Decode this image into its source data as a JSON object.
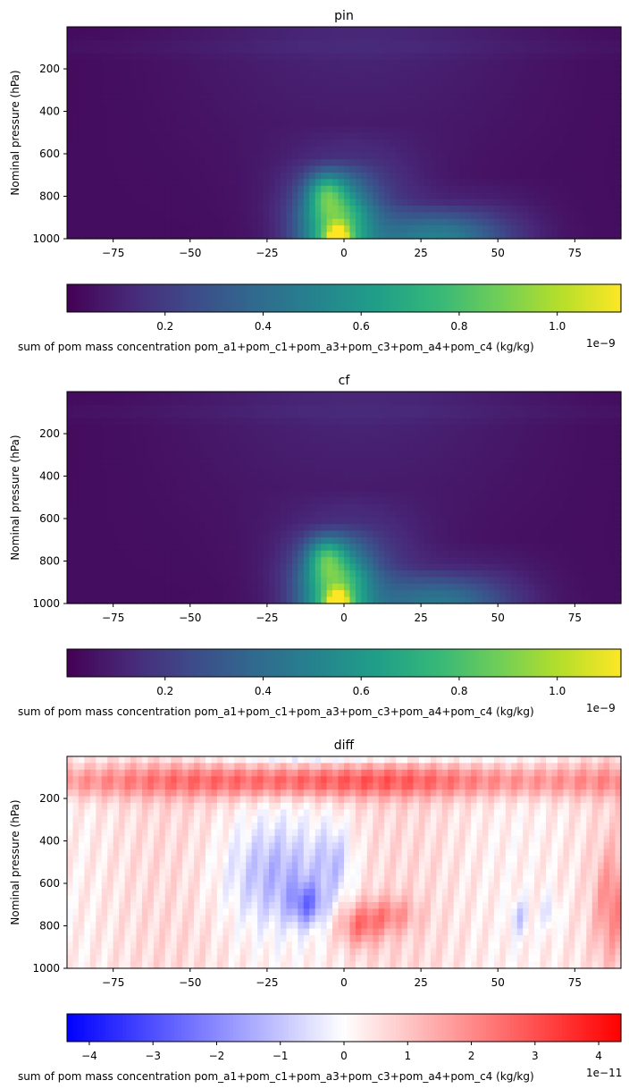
{
  "chart_data": [
    {
      "type": "heatmap",
      "title": "pin",
      "xlabel": "",
      "ylabel": "Nominal pressure (hPa)",
      "xlim": [
        -90,
        90
      ],
      "ylim": [
        1000,
        2
      ],
      "x_ticks": [
        -75,
        -50,
        -25,
        0,
        25,
        50,
        75
      ],
      "x_tick_labels": [
        "−75",
        "−50",
        "−25",
        "0",
        "25",
        "50",
        "75"
      ],
      "y_ticks": [
        200,
        400,
        600,
        800,
        1000
      ],
      "y_tick_labels": [
        "200",
        "400",
        "600",
        "800",
        "1000"
      ],
      "colormap": "viridis",
      "colorbar": {
        "range": [
          0,
          1.13
        ],
        "ticks": [
          0.2,
          0.4,
          0.6,
          0.8,
          1.0
        ],
        "tick_labels": [
          "0.2",
          "0.4",
          "0.6",
          "0.8",
          "1.0"
        ],
        "offset_label": "1e−9",
        "label": "sum of pom mass concentration pom_a1+pom_c1+pom_a3+pom_c3+pom_a4+pom_c4 (kg/kg)"
      }
    },
    {
      "type": "heatmap",
      "title": "cf",
      "xlabel": "",
      "ylabel": "Nominal pressure (hPa)",
      "xlim": [
        -90,
        90
      ],
      "ylim": [
        1000,
        2
      ],
      "x_ticks": [
        -75,
        -50,
        -25,
        0,
        25,
        50,
        75
      ],
      "x_tick_labels": [
        "−75",
        "−50",
        "−25",
        "0",
        "25",
        "50",
        "75"
      ],
      "y_ticks": [
        200,
        400,
        600,
        800,
        1000
      ],
      "y_tick_labels": [
        "200",
        "400",
        "600",
        "800",
        "1000"
      ],
      "colormap": "viridis",
      "colorbar": {
        "range": [
          0,
          1.13
        ],
        "ticks": [
          0.2,
          0.4,
          0.6,
          0.8,
          1.0
        ],
        "tick_labels": [
          "0.2",
          "0.4",
          "0.6",
          "0.8",
          "1.0"
        ],
        "offset_label": "1e−9",
        "label": "sum of pom mass concentration pom_a1+pom_c1+pom_a3+pom_c3+pom_a4+pom_c4 (kg/kg)"
      }
    },
    {
      "type": "heatmap",
      "title": "diff",
      "xlabel": "",
      "ylabel": "Nominal pressure (hPa)",
      "xlim": [
        -90,
        90
      ],
      "ylim": [
        1000,
        2
      ],
      "x_ticks": [
        -75,
        -50,
        -25,
        0,
        25,
        50,
        75
      ],
      "x_tick_labels": [
        "−75",
        "−50",
        "−25",
        "0",
        "25",
        "50",
        "75"
      ],
      "y_ticks": [
        200,
        400,
        600,
        800,
        1000
      ],
      "y_tick_labels": [
        "200",
        "400",
        "600",
        "800",
        "1000"
      ],
      "colormap": "bwr",
      "colorbar": {
        "range": [
          -4.35,
          4.35
        ],
        "ticks": [
          -4,
          -3,
          -2,
          -1,
          0,
          1,
          2,
          3,
          4
        ],
        "tick_labels": [
          "−4",
          "−3",
          "−2",
          "−1",
          "0",
          "1",
          "2",
          "3",
          "4"
        ],
        "offset_label": "1e−11",
        "label": "sum of pom mass concentration pom_a1+pom_c1+pom_a3+pom_c3+pom_a4+pom_c4 (kg/kg)"
      }
    }
  ]
}
